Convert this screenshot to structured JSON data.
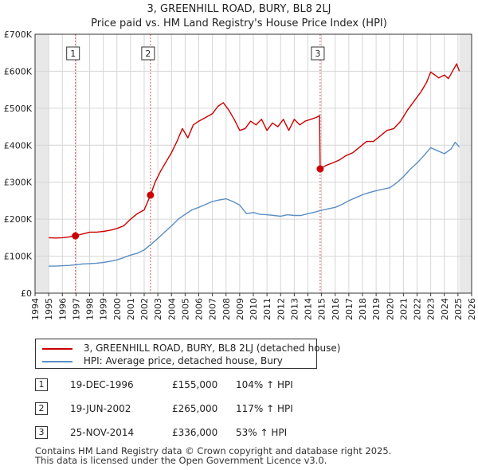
{
  "chart_data": {
    "type": "line",
    "title": "3, GREENHILL ROAD, BURY, BL8 2LJ",
    "subtitle": "Price paid vs. HM Land Registry's House Price Index (HPI)",
    "xlim": [
      1994,
      2026
    ],
    "ylim": [
      0,
      700000
    ],
    "x_ticks": [
      1994,
      1995,
      1996,
      1997,
      1998,
      1999,
      2000,
      2001,
      2002,
      2003,
      2004,
      2005,
      2006,
      2007,
      2008,
      2009,
      2010,
      2011,
      2012,
      2013,
      2014,
      2015,
      2016,
      2017,
      2018,
      2019,
      2020,
      2021,
      2022,
      2023,
      2024,
      2025,
      2026
    ],
    "x_tick_labels": [
      "1994",
      "1995",
      "1996",
      "1997",
      "1998",
      "1999",
      "2000",
      "2001",
      "2002",
      "2003",
      "2004",
      "2005",
      "2006",
      "2007",
      "2008",
      "2009",
      "2010",
      "2011",
      "2012",
      "2013",
      "2014",
      "2015",
      "2016",
      "2017",
      "2018",
      "2019",
      "2020",
      "2021",
      "2022",
      "2023",
      "2024",
      "2025",
      "2026"
    ],
    "y_ticks": [
      0,
      100000,
      200000,
      300000,
      400000,
      500000,
      600000,
      700000
    ],
    "y_tick_labels": [
      "£0",
      "£100K",
      "£200K",
      "£300K",
      "£400K",
      "£500K",
      "£600K",
      "£700K"
    ],
    "grid": true,
    "shaded_ranges": [
      [
        1994,
        1995
      ],
      [
        2025.1,
        2026
      ]
    ],
    "series": [
      {
        "name": "3, GREENHILL ROAD, BURY, BL8 2LJ (detached house)",
        "color": "#cc0000",
        "x": [
          1995.0,
          1995.5,
          1996.0,
          1996.5,
          1996.96,
          1997.5,
          1998.0,
          1998.5,
          1999.0,
          1999.5,
          2000.0,
          2000.5,
          2001.0,
          2001.5,
          2002.0,
          2002.46,
          2002.8,
          2003.2,
          2003.6,
          2004.0,
          2004.4,
          2004.8,
          2005.2,
          2005.6,
          2006.0,
          2006.5,
          2007.0,
          2007.4,
          2007.8,
          2008.2,
          2008.6,
          2009.0,
          2009.4,
          2009.8,
          2010.2,
          2010.6,
          2011.0,
          2011.4,
          2011.8,
          2012.2,
          2012.6,
          2013.0,
          2013.4,
          2013.8,
          2014.2,
          2014.6,
          2014.85,
          2014.9,
          2015.3,
          2015.8,
          2016.3,
          2016.8,
          2017.3,
          2017.8,
          2018.3,
          2018.8,
          2019.3,
          2019.8,
          2020.3,
          2020.8,
          2021.3,
          2021.8,
          2022.3,
          2022.7,
          2023.0,
          2023.3,
          2023.6,
          2024.0,
          2024.3,
          2024.6,
          2024.9,
          2025.1
        ],
        "y": [
          150000,
          149000,
          150000,
          152000,
          155000,
          160000,
          165000,
          165000,
          167000,
          170000,
          175000,
          182000,
          200000,
          215000,
          225000,
          265000,
          300000,
          330000,
          355000,
          380000,
          410000,
          445000,
          420000,
          455000,
          465000,
          475000,
          485000,
          505000,
          515000,
          495000,
          470000,
          440000,
          445000,
          465000,
          455000,
          470000,
          440000,
          460000,
          450000,
          470000,
          440000,
          470000,
          455000,
          465000,
          470000,
          475000,
          480000,
          336000,
          345000,
          352000,
          360000,
          372000,
          380000,
          395000,
          410000,
          410000,
          425000,
          440000,
          445000,
          465000,
          495000,
          520000,
          545000,
          570000,
          598000,
          590000,
          582000,
          590000,
          580000,
          600000,
          620000,
          600000
        ]
      },
      {
        "name": "HPI: Average price, detached house, Bury",
        "color": "#5b8ec4",
        "x": [
          1995.0,
          1995.5,
          1996.0,
          1996.5,
          1997.0,
          1997.5,
          1998.0,
          1998.5,
          1999.0,
          1999.5,
          2000.0,
          2000.5,
          2001.0,
          2001.5,
          2002.0,
          2002.5,
          2003.0,
          2003.5,
          2004.0,
          2004.5,
          2005.0,
          2005.5,
          2006.0,
          2006.5,
          2007.0,
          2007.5,
          2008.0,
          2008.5,
          2009.0,
          2009.5,
          2010.0,
          2010.5,
          2011.0,
          2011.5,
          2012.0,
          2012.5,
          2013.0,
          2013.5,
          2014.0,
          2014.5,
          2015.0,
          2015.5,
          2016.0,
          2016.5,
          2017.0,
          2017.5,
          2018.0,
          2018.5,
          2019.0,
          2019.5,
          2020.0,
          2020.5,
          2021.0,
          2021.5,
          2022.0,
          2022.5,
          2023.0,
          2023.5,
          2024.0,
          2024.5,
          2024.8,
          2025.1
        ],
        "y": [
          73000,
          73000,
          74000,
          75000,
          77000,
          79000,
          80000,
          81000,
          83000,
          86000,
          90000,
          96000,
          103000,
          108000,
          117000,
          132000,
          148000,
          165000,
          182000,
          200000,
          213000,
          225000,
          232000,
          240000,
          248000,
          252000,
          255000,
          248000,
          238000,
          215000,
          218000,
          213000,
          212000,
          210000,
          208000,
          212000,
          210000,
          210000,
          215000,
          219000,
          224000,
          228000,
          232000,
          240000,
          250000,
          258000,
          266000,
          272000,
          277000,
          281000,
          285000,
          298000,
          315000,
          335000,
          352000,
          372000,
          393000,
          385000,
          377000,
          390000,
          408000,
          395000
        ]
      }
    ],
    "sale_markers": [
      {
        "label": "1",
        "x": 1996.96,
        "y": 155000
      },
      {
        "label": "2",
        "x": 2002.46,
        "y": 265000
      },
      {
        "label": "3",
        "x": 2014.9,
        "y": 336000
      }
    ]
  },
  "legend": {
    "property_label": "3, GREENHILL ROAD, BURY, BL8 2LJ (detached house)",
    "hpi_label": "HPI: Average price, detached house, Bury"
  },
  "sales": [
    {
      "num": "1",
      "date": "19-DEC-1996",
      "price": "£155,000",
      "pct": "104% ↑ HPI"
    },
    {
      "num": "2",
      "date": "19-JUN-2002",
      "price": "£265,000",
      "pct": "117% ↑ HPI"
    },
    {
      "num": "3",
      "date": "25-NOV-2014",
      "price": "£336,000",
      "pct": "53% ↑ HPI"
    }
  ],
  "footer": {
    "line1": "Contains HM Land Registry data © Crown copyright and database right 2025.",
    "line2": "This data is licensed under the Open Government Licence v3.0."
  }
}
